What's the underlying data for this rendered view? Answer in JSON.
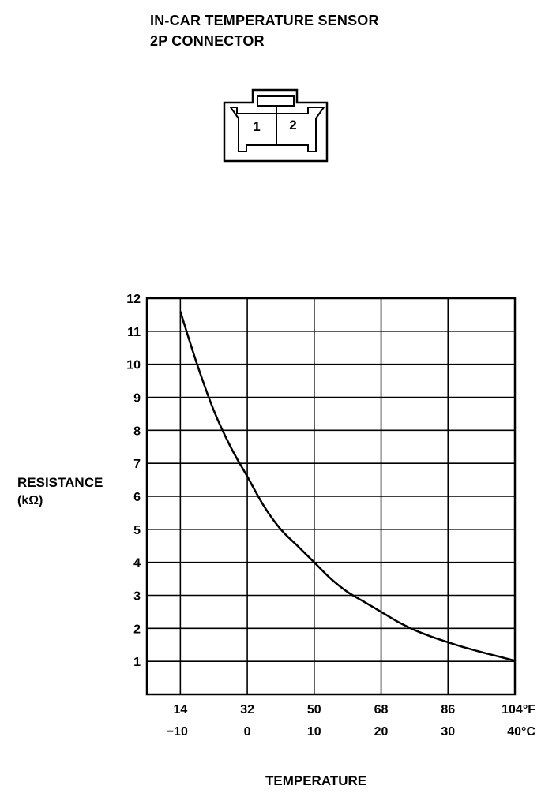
{
  "header": {
    "title_line1": "IN-CAR TEMPERATURE SENSOR",
    "title_line2": "2P CONNECTOR"
  },
  "connector": {
    "pins": [
      "1",
      "2"
    ]
  },
  "chart_data": {
    "type": "line",
    "ylabel": "RESISTANCE",
    "yunit": "(kΩ)",
    "xlabel": "TEMPERATURE",
    "ylim": [
      0,
      12
    ],
    "yticks": [
      1,
      2,
      3,
      4,
      5,
      6,
      7,
      8,
      9,
      10,
      11,
      12
    ],
    "xlim_c": [
      -15,
      40
    ],
    "xticks": [
      {
        "c": -10,
        "f_label": "14",
        "c_label": "−10"
      },
      {
        "c": 0,
        "f_label": "32",
        "c_label": "0"
      },
      {
        "c": 10,
        "f_label": "50",
        "c_label": "10"
      },
      {
        "c": 20,
        "f_label": "68",
        "c_label": "20"
      },
      {
        "c": 30,
        "f_label": "86",
        "c_label": "30"
      },
      {
        "c": 40,
        "f_label": "104°F",
        "c_label": "40°C"
      }
    ],
    "grid": true,
    "series": [
      {
        "x": [
          -10,
          -7.5,
          -5,
          -2.5,
          0,
          2.5,
          5,
          7.5,
          10,
          12.5,
          15,
          17.5,
          20,
          22.5,
          25,
          27.5,
          30,
          32.5,
          35,
          37.5,
          40
        ],
        "y": [
          11.6,
          10.0,
          8.6,
          7.5,
          6.6,
          5.7,
          5.0,
          4.5,
          4.0,
          3.5,
          3.1,
          2.8,
          2.5,
          2.2,
          1.95,
          1.75,
          1.58,
          1.42,
          1.28,
          1.15,
          1.02
        ]
      }
    ]
  }
}
